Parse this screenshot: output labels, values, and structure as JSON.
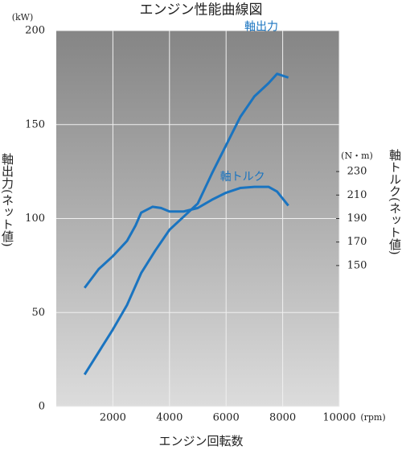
{
  "chart_data": {
    "type": "line",
    "title": "エンジン性能曲線図",
    "x_label": "エンジン回転数",
    "x_unit": "(rpm)",
    "y_label": "軸出力(ネット値)",
    "y_unit": "(kW)",
    "y2_label": "軸トルク(ネット値)",
    "y2_unit": "(N・m)",
    "xlim": [
      0,
      10000
    ],
    "xticks": [
      2000,
      4000,
      6000,
      8000,
      10000
    ],
    "ylim": [
      0,
      200
    ],
    "yticks": [
      0,
      50,
      100,
      150,
      200
    ],
    "y2lim": [
      30,
      350
    ],
    "y2ticks": [
      150,
      170,
      190,
      210,
      230
    ],
    "grid": true,
    "series": [
      {
        "name": "軸出力",
        "color": "#1a74c0",
        "x": [
          1000,
          2000,
          2500,
          3000,
          3500,
          4000,
          4500,
          5000,
          5500,
          6000,
          6500,
          7000,
          7500,
          7800,
          8200
        ],
        "values": [
          17,
          41,
          54,
          71,
          83,
          94,
          101,
          108,
          124,
          139,
          154,
          165,
          172,
          177,
          175
        ]
      },
      {
        "name": "軸トルク",
        "color": "#1a74c0",
        "axis": "y2",
        "x": [
          1000,
          1500,
          2000,
          2500,
          2800,
          3000,
          3400,
          3700,
          4000,
          4500,
          5000,
          5500,
          6000,
          6500,
          7000,
          7500,
          7800,
          8200
        ],
        "values": [
          131,
          147,
          158,
          171,
          184,
          195,
          200,
          199,
          196,
          196,
          199,
          206,
          212,
          216,
          217,
          217,
          213,
          201
        ]
      }
    ]
  }
}
